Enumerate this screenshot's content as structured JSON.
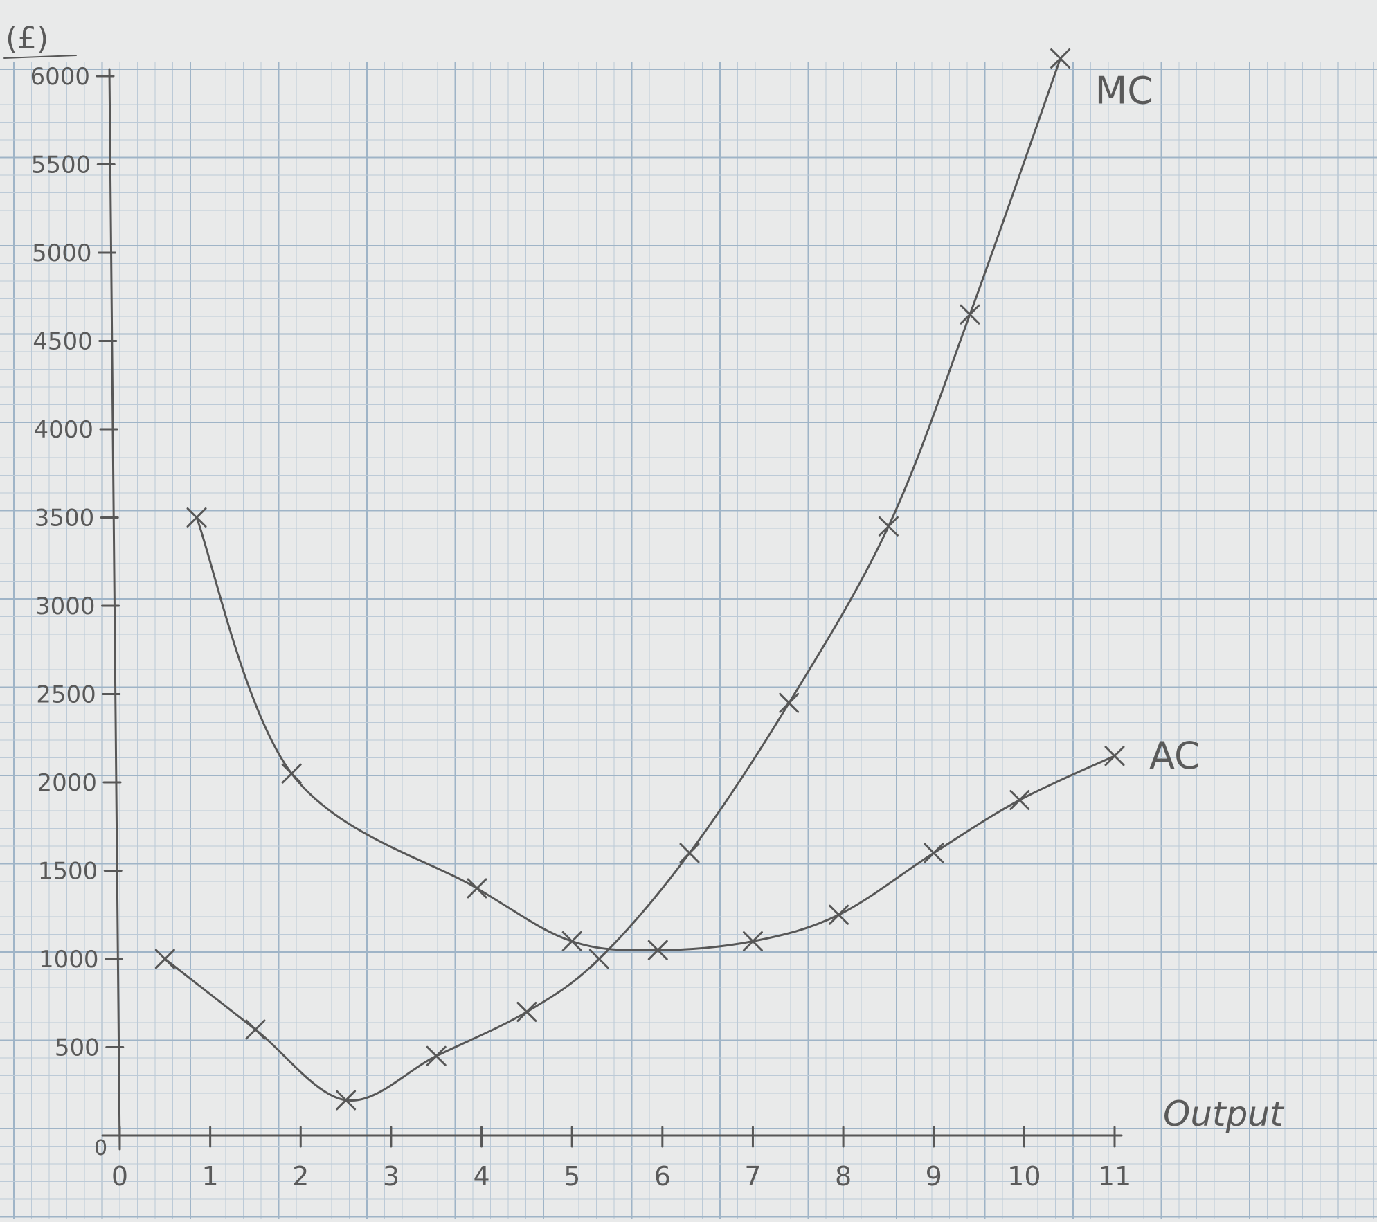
{
  "header": {
    "unit_label": "(£)",
    "origin_label": "0"
  },
  "chart_data": {
    "type": "line",
    "title": "",
    "xlabel": "Output",
    "ylabel": "(£)",
    "xlim": [
      0,
      11
    ],
    "ylim": [
      0,
      6000
    ],
    "x_ticks": [
      "0",
      "1",
      "2",
      "3",
      "4",
      "5",
      "6",
      "7",
      "8",
      "9",
      "10",
      "11"
    ],
    "y_ticks": [
      "500",
      "1000",
      "1500",
      "2000",
      "2500",
      "3000",
      "3500",
      "4000",
      "4500",
      "5000",
      "5500",
      "6000"
    ],
    "grid": true,
    "series": [
      {
        "name": "MC",
        "x": [
          0.5,
          1.5,
          2.5,
          3.5,
          4.5,
          5.3,
          6.3,
          7.4,
          8.5,
          9.4,
          10.4
        ],
        "y": [
          1000,
          600,
          200,
          450,
          700,
          1000,
          1600,
          2450,
          3450,
          4650,
          6100
        ]
      },
      {
        "name": "AC",
        "x": [
          0.85,
          1.9,
          3.95,
          5.0,
          5.95,
          7.0,
          7.95,
          9.0,
          9.95,
          11.0
        ],
        "y": [
          3500,
          2050,
          1400,
          1100,
          1050,
          1100,
          1250,
          1600,
          1900,
          2150
        ]
      }
    ]
  }
}
